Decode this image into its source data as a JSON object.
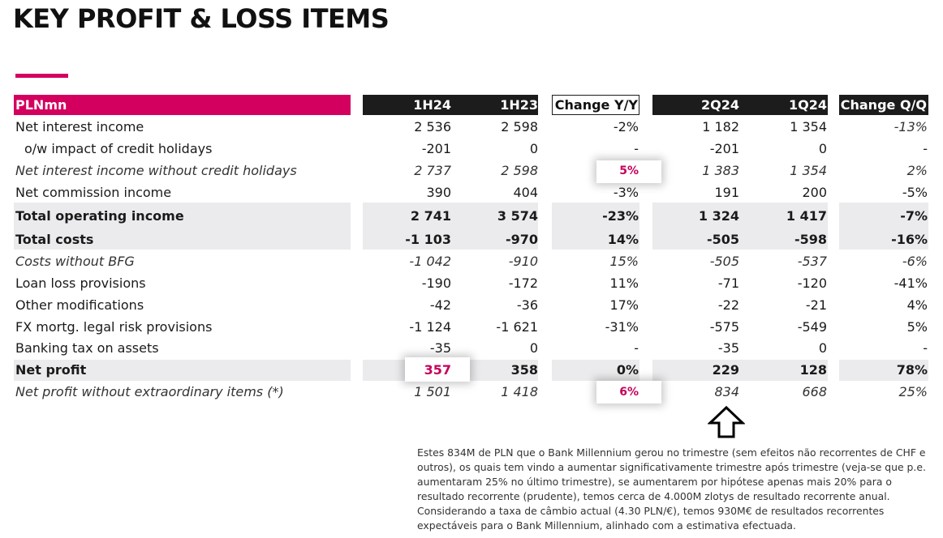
{
  "title": "KEY PROFIT & LOSS ITEMS",
  "colors": {
    "accent": "#d4005f",
    "header_dark": "#1c1c1c",
    "shade": "#ebebed",
    "highlight_text": "#c4005a"
  },
  "header": {
    "label": "PLNmn",
    "cols": [
      "1H24",
      "1H23",
      "Change Y/Y",
      "2Q24",
      "1Q24",
      "Change Q/Q"
    ]
  },
  "rows": [
    {
      "label": "Net interest income",
      "values": [
        "2 536",
        "2 598",
        "-2%",
        "1 182",
        "1 354",
        "-13%"
      ]
    },
    {
      "label": "o/w impact of credit holidays",
      "values": [
        "-201",
        "0",
        "-",
        "-201",
        "0",
        "-"
      ]
    },
    {
      "label": "Net interest income without credit holidays",
      "values": [
        "2 737",
        "2 598",
        "5%",
        "1 383",
        "1 354",
        "2%"
      ]
    },
    {
      "label": "Net commission income",
      "values": [
        "390",
        "404",
        "-3%",
        "191",
        "200",
        "-5%"
      ]
    },
    {
      "label": "Total operating income",
      "values": [
        "2 741",
        "3 574",
        "-23%",
        "1 324",
        "1 417",
        "-7%"
      ]
    },
    {
      "label": "Total costs",
      "values": [
        "-1 103",
        "-970",
        "14%",
        "-505",
        "-598",
        "-16%"
      ]
    },
    {
      "label": "Costs without BFG",
      "values": [
        "-1 042",
        "-910",
        "15%",
        "-505",
        "-537",
        "-6%"
      ]
    },
    {
      "label": "Loan loss provisions",
      "values": [
        "-190",
        "-172",
        "11%",
        "-71",
        "-120",
        "-41%"
      ]
    },
    {
      "label": "Other modifications",
      "values": [
        "-42",
        "-36",
        "17%",
        "-22",
        "-21",
        "4%"
      ]
    },
    {
      "label": "FX mortg. legal risk provisions",
      "values": [
        "-1 124",
        "-1 621",
        "-31%",
        "-575",
        "-549",
        "5%"
      ]
    },
    {
      "label": "Banking tax on assets",
      "values": [
        "-35",
        "0",
        "-",
        "-35",
        "0",
        "-"
      ]
    },
    {
      "label": "Net profit",
      "values": [
        "357",
        "358",
        "0%",
        "229",
        "128",
        "78%"
      ]
    },
    {
      "label": "Net profit without extraordinary items (*)",
      "values": [
        "1 501",
        "1 418",
        "6%",
        "834",
        "668",
        "25%"
      ]
    }
  ],
  "note": [
    "Estes 834M de PLN que o Bank Millennium gerou no trimestre (sem efeitos não recorrentes de CHF e outros), os quais tem vindo a aumentar significativamente trimestre após trimestre (veja-se que p.e. aumentaram 25% no último trimestre), se aumentarem por hipótese apenas mais 20% para o resultado recorrente (prudente), temos cerca de 4.000M zlotys de resultado recorrente anual.",
    "Considerando a taxa de câmbio actual (4.30 PLN/€), temos 930M€ de resultados recorrentes expectáveis para o Bank Millennium, alinhado com a estimativa efectuada."
  ]
}
